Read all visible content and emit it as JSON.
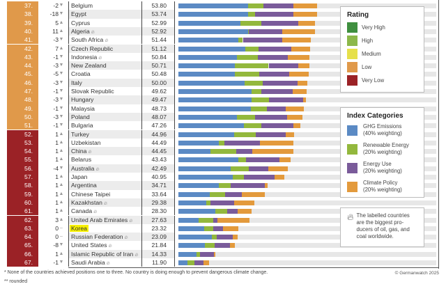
{
  "chart_data": {
    "type": "bar",
    "orientation": "horizontal-stacked",
    "xlim": [
      0,
      100
    ],
    "series_names": [
      "GHG Emissions",
      "Renewable Energy",
      "Energy Use",
      "Climate Policy"
    ],
    "rows": [
      {
        "rank": "37.",
        "change": "-2",
        "dir": "down",
        "country": "Belgium",
        "score": "53.80",
        "values": [
          26.9,
          6.0,
          11.7,
          9.2
        ],
        "rating": "low",
        "producer": false
      },
      {
        "rank": "38.",
        "change": "-18",
        "dir": "down",
        "country": "Egypt",
        "score": "53.74",
        "values": [
          27.0,
          2.8,
          14.7,
          9.3
        ],
        "rating": "low",
        "producer": false
      },
      {
        "rank": "39.",
        "change": "5",
        "dir": "up",
        "country": "Cyprus",
        "score": "52.99",
        "values": [
          24.1,
          8.0,
          14.4,
          6.5
        ],
        "rating": "low",
        "producer": false
      },
      {
        "rank": "40.",
        "change": "11",
        "dir": "up",
        "country": "Algeria",
        "score": "52.92",
        "values": [
          27.0,
          0.4,
          12.9,
          12.6
        ],
        "rating": "low",
        "producer": true
      },
      {
        "rank": "41.",
        "change": "-3",
        "dir": "down",
        "country": "South Africa",
        "score": "51.44",
        "values": [
          23.3,
          1.7,
          15.2,
          11.2
        ],
        "rating": "low",
        "producer": true
      },
      {
        "rank": "42.",
        "change": "7",
        "dir": "up",
        "country": "Czech Republic",
        "score": "51.12",
        "values": [
          25.9,
          5.3,
          12.6,
          7.3
        ],
        "rating": "low",
        "producer": false
      },
      {
        "rank": "43.",
        "change": "-1",
        "dir": "down",
        "country": "Indonesia",
        "score": "50.84",
        "values": [
          22.6,
          8.2,
          11.5,
          8.5
        ],
        "rating": "low",
        "producer": true
      },
      {
        "rank": "44.",
        "change": "-3",
        "dir": "down",
        "country": "New Zealand",
        "score": "50.71",
        "values": [
          22.0,
          13.0,
          11.4,
          4.3
        ],
        "rating": "low",
        "producer": false
      },
      {
        "rank": "45.",
        "change": "-5",
        "dir": "down",
        "country": "Croatia",
        "score": "50.48",
        "values": [
          22.0,
          9.3,
          11.6,
          7.6
        ],
        "rating": "low",
        "producer": false
      },
      {
        "rank": "46.",
        "change": "-3",
        "dir": "down",
        "country": "Italy",
        "score": "50.00",
        "values": [
          25.8,
          6.9,
          13.4,
          3.9
        ],
        "rating": "low",
        "producer": false
      },
      {
        "rank": "47.",
        "change": "-1",
        "dir": "down",
        "country": "Slovak Republic",
        "score": "49.62",
        "values": [
          28.3,
          3.8,
          12.2,
          5.3
        ],
        "rating": "low",
        "producer": false
      },
      {
        "rank": "48.",
        "change": "-3",
        "dir": "down",
        "country": "Hungary",
        "score": "49.47",
        "values": [
          28.5,
          6.7,
          13.1,
          1.2
        ],
        "rating": "low",
        "producer": false
      },
      {
        "rank": "49.",
        "change": "-1",
        "dir": "down",
        "country": "Malaysia",
        "score": "48.73",
        "values": [
          28.1,
          6.1,
          7.5,
          7.0
        ],
        "rating": "low",
        "producer": false
      },
      {
        "rank": "50.",
        "change": "-3",
        "dir": "down",
        "country": "Poland",
        "score": "48.07",
        "values": [
          22.8,
          6.8,
          12.5,
          6.0
        ],
        "rating": "low",
        "producer": false
      },
      {
        "rank": "51.",
        "change": "-1",
        "dir": "down",
        "country": "Bulgaria",
        "score": "47.26",
        "values": [
          25.3,
          6.8,
          12.4,
          2.8
        ],
        "rating": "low",
        "producer": false
      },
      {
        "rank": "52.",
        "change": "1",
        "dir": "up",
        "country": "Turkey",
        "score": "44.96",
        "values": [
          21.6,
          8.4,
          11.7,
          3.3
        ],
        "rating": "very-low",
        "producer": false
      },
      {
        "rank": "53.",
        "change": "1",
        "dir": "up",
        "country": "Uzbekistan",
        "score": "44.49",
        "values": [
          15.8,
          2.1,
          13.8,
          12.8
        ],
        "rating": "very-low",
        "producer": false
      },
      {
        "rank": "54.",
        "change": "1",
        "dir": "up",
        "country": "China",
        "score": "44.45",
        "values": [
          12.5,
          9.9,
          6.3,
          15.8
        ],
        "rating": "very-low",
        "producer": true
      },
      {
        "rank": "55.",
        "change": "1",
        "dir": "up",
        "country": "Belarus",
        "score": "43.43",
        "values": [
          23.3,
          2.8,
          13.0,
          4.3
        ],
        "rating": "very-low",
        "producer": false
      },
      {
        "rank": "56.",
        "change": "-4",
        "dir": "down",
        "country": "Australia",
        "score": "42.49",
        "values": [
          20.4,
          6.8,
          7.6,
          7.7
        ],
        "rating": "very-low",
        "producer": true
      },
      {
        "rank": "57.",
        "change": "1",
        "dir": "up",
        "country": "Japan",
        "score": "40.95",
        "values": [
          21.1,
          4.4,
          11.7,
          3.8
        ],
        "rating": "very-low",
        "producer": false
      },
      {
        "rank": "58.",
        "change": "1",
        "dir": "up",
        "country": "Argentina",
        "score": "34.71",
        "values": [
          15.8,
          4.6,
          13.0,
          1.3
        ],
        "rating": "very-low",
        "producer": false
      },
      {
        "rank": "59.",
        "change": "1",
        "dir": "up",
        "country": "Chinese Taipei",
        "score": "33.64",
        "values": [
          12.1,
          6.1,
          6.3,
          9.1
        ],
        "rating": "very-low",
        "producer": false
      },
      {
        "rank": "60.",
        "change": "1",
        "dir": "up",
        "country": "Kazakhstan",
        "score": "29.38",
        "values": [
          10.7,
          1.8,
          9.1,
          7.8
        ],
        "rating": "very-low",
        "producer": true
      },
      {
        "rank": "61.",
        "change": "1",
        "dir": "up",
        "country": "Canada",
        "score": "28.30",
        "values": [
          14.4,
          4.4,
          4.3,
          5.2
        ],
        "rating": "very-low",
        "producer": true
      },
      {
        "rank": "62.",
        "change": "3",
        "dir": "up",
        "country": "United Arab Emirates",
        "score": "27.63",
        "values": [
          7.8,
          5.6,
          1.7,
          12.5
        ],
        "rating": "very-low",
        "producer": true
      },
      {
        "rank": "63.",
        "change": "0",
        "dir": "none",
        "country": "Korea",
        "score": "23.32",
        "values": [
          10.1,
          3.3,
          4.0,
          5.9
        ],
        "rating": "very-low",
        "producer": false,
        "highlight": true
      },
      {
        "rank": "64.",
        "change": "0",
        "dir": "none",
        "country": "Russian Federation",
        "score": "23.09",
        "values": [
          13.0,
          1.9,
          6.2,
          2.0
        ],
        "rating": "very-low",
        "producer": true
      },
      {
        "rank": "65.",
        "change": "-8",
        "dir": "down",
        "country": "United States",
        "score": "21.84",
        "values": [
          10.3,
          3.7,
          6.1,
          1.7
        ],
        "rating": "very-low",
        "producer": true
      },
      {
        "rank": "66.",
        "change": "1",
        "dir": "up",
        "country": "Islamic Republic of Iran",
        "score": "14.33",
        "values": [
          6.9,
          1.5,
          5.4,
          0.5
        ],
        "rating": "very-low",
        "producer": true
      },
      {
        "rank": "67.",
        "change": "-1",
        "dir": "down",
        "country": "Saudi Arabia",
        "score": "11.90",
        "values": [
          3.5,
          2.6,
          3.6,
          2.2
        ],
        "rating": "very-low",
        "producer": true
      }
    ]
  },
  "colors": {
    "ghg": "#5b8ac4",
    "renewable": "#93b83d",
    "energy": "#7a5b9a",
    "policy": "#e39a3c",
    "very_high": "#3f8f3f",
    "high": "#8cb84a",
    "medium": "#e6e04a",
    "low": "#e0994a",
    "very_low": "#9b2226",
    "track": "#e7e7e7"
  },
  "legend_rating": {
    "title": "Rating",
    "items": [
      {
        "label": "Very High",
        "color": "#3f8f3f"
      },
      {
        "label": "High",
        "color": "#8cb84a"
      },
      {
        "label": "Medium",
        "color": "#e6e04a"
      },
      {
        "label": "Low",
        "color": "#e0994a"
      },
      {
        "label": "Very Low",
        "color": "#9b2226"
      }
    ]
  },
  "legend_categories": {
    "title": "Index Categories",
    "items": [
      {
        "label": "GHG Emissions",
        "sub": "(40% weighting)",
        "color": "#5b8ac4"
      },
      {
        "label": "Renewable Energy",
        "sub": "(20% weighting)",
        "color": "#93b83d"
      },
      {
        "label": "Energy Use",
        "sub": "(20% weighting)",
        "color": "#7a5b9a"
      },
      {
        "label": "Climate Policy",
        "sub": "(20% weighting)",
        "color": "#e39a3c"
      }
    ]
  },
  "producer_note": "The labelled countries are the biggest pro-ducers of oil, gas, and coal worldwide.",
  "footnote1": "* None of the countries achieved positions one to three. No country is doing enough to prevent dangerous climate change.",
  "footnote2": "** rounded",
  "copyright": "© Germanwatch 2025"
}
